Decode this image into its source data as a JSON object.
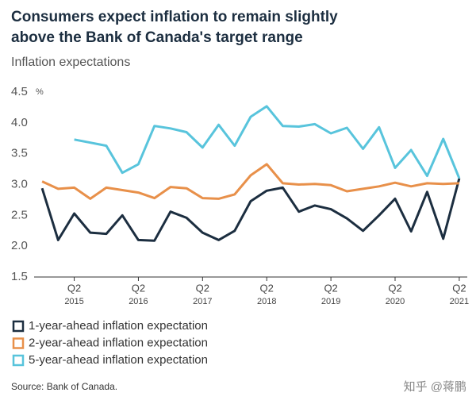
{
  "chart_data": {
    "type": "line",
    "title": [
      "Consumers expect inflation to remain slightly",
      "above the Bank of Canada's target range"
    ],
    "subtitle": "Inflation expectations",
    "y_unit": "%",
    "categories": [
      null,
      null,
      [
        "Q2",
        "2015"
      ],
      null,
      null,
      null,
      [
        "Q2",
        "2016"
      ],
      null,
      null,
      null,
      [
        "Q2",
        "2017"
      ],
      null,
      null,
      null,
      [
        "Q2",
        "2018"
      ],
      null,
      null,
      null,
      [
        "Q2",
        "2019"
      ],
      null,
      null,
      null,
      [
        "Q2",
        "2020"
      ],
      null,
      null,
      null,
      [
        "Q2",
        "2021"
      ]
    ],
    "series": [
      {
        "name": "1-year-ahead inflation expectation",
        "color": "#1c2e40",
        "values": [
          2.94,
          2.1,
          2.53,
          2.22,
          2.2,
          2.5,
          2.1,
          2.09,
          2.56,
          2.46,
          2.22,
          2.1,
          2.25,
          2.73,
          2.9,
          2.95,
          2.56,
          2.66,
          2.6,
          2.45,
          2.25,
          2.5,
          2.77,
          2.24,
          2.88,
          2.12,
          3.1
        ]
      },
      {
        "name": "2-year-ahead inflation expectation",
        "color": "#e8904a",
        "values": [
          3.05,
          2.93,
          2.95,
          2.77,
          2.95,
          2.91,
          2.87,
          2.78,
          2.96,
          2.94,
          2.78,
          2.77,
          2.84,
          3.15,
          3.33,
          3.02,
          3.0,
          3.01,
          2.99,
          2.89,
          2.93,
          2.97,
          3.03,
          2.97,
          3.02,
          3.01,
          3.02
        ]
      },
      {
        "name": "5-year-ahead inflation expectation",
        "color": "#58c4dc",
        "values": [
          null,
          null,
          3.73,
          3.68,
          3.63,
          3.19,
          3.33,
          3.95,
          3.91,
          3.85,
          3.6,
          3.97,
          3.63,
          4.1,
          4.27,
          3.95,
          3.94,
          3.98,
          3.83,
          3.92,
          3.58,
          3.93,
          3.27,
          3.56,
          3.14,
          3.74,
          3.1
        ]
      }
    ],
    "ylim": [
      1.5,
      4.5
    ],
    "yticks": [
      1.5,
      {
        "value": 2,
        "label": "2.0"
      },
      2.5,
      {
        "value": 3,
        "label": "3.0"
      },
      3.5,
      {
        "value": 4,
        "label": "4.0"
      },
      4.5
    ],
    "grid": false,
    "source": "Source: Bank of Canada.",
    "watermark": "知乎 @蒋鹏"
  }
}
